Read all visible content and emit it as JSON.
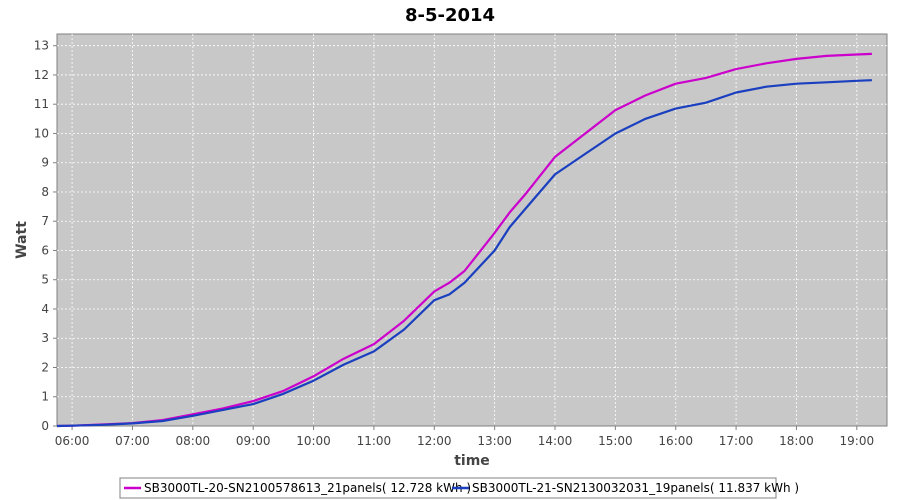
{
  "chart_data": {
    "type": "line",
    "title": "8-5-2014",
    "xlabel": "time",
    "ylabel": "Watt",
    "xlim": [
      "05:45",
      "19:30"
    ],
    "ylim": [
      0,
      13.4
    ],
    "x_ticks": [
      "06:00",
      "07:00",
      "08:00",
      "09:00",
      "10:00",
      "11:00",
      "12:00",
      "13:00",
      "14:00",
      "15:00",
      "16:00",
      "17:00",
      "18:00",
      "19:00"
    ],
    "y_ticks": [
      0,
      1,
      2,
      3,
      4,
      5,
      6,
      7,
      8,
      9,
      10,
      11,
      12,
      13
    ],
    "grid": true,
    "legend_position": "bottom",
    "series": [
      {
        "name": "SB3000TL-20-SN2100578613_21panels( 12.728 kWh )",
        "color": "#cc00cc",
        "x": [
          "05:45",
          "06:00",
          "06:30",
          "07:00",
          "07:30",
          "08:00",
          "08:30",
          "09:00",
          "09:30",
          "10:00",
          "10:30",
          "11:00",
          "11:30",
          "12:00",
          "12:15",
          "12:30",
          "13:00",
          "13:15",
          "13:30",
          "14:00",
          "14:30",
          "15:00",
          "15:30",
          "16:00",
          "16:30",
          "17:00",
          "17:30",
          "18:00",
          "18:30",
          "19:00",
          "19:15"
        ],
        "y": [
          0.0,
          0.01,
          0.05,
          0.1,
          0.2,
          0.4,
          0.6,
          0.85,
          1.2,
          1.7,
          2.3,
          2.8,
          3.6,
          4.6,
          4.9,
          5.3,
          6.6,
          7.3,
          7.9,
          9.2,
          10.0,
          10.8,
          11.3,
          11.7,
          11.9,
          12.2,
          12.4,
          12.55,
          12.65,
          12.7,
          12.72
        ]
      },
      {
        "name": "SB3000TL-21-SN2130032031_19panels( 11.837 kWh )",
        "color": "#1a3fbf",
        "x": [
          "05:45",
          "06:00",
          "06:30",
          "07:00",
          "07:30",
          "08:00",
          "08:30",
          "09:00",
          "09:30",
          "10:00",
          "10:30",
          "11:00",
          "11:30",
          "12:00",
          "12:15",
          "12:30",
          "13:00",
          "13:15",
          "13:30",
          "14:00",
          "14:30",
          "15:00",
          "15:30",
          "16:00",
          "16:30",
          "17:00",
          "17:30",
          "18:00",
          "18:30",
          "19:00",
          "19:15"
        ],
        "y": [
          0.0,
          0.01,
          0.04,
          0.09,
          0.17,
          0.35,
          0.55,
          0.75,
          1.1,
          1.55,
          2.1,
          2.55,
          3.3,
          4.3,
          4.5,
          4.9,
          6.0,
          6.8,
          7.4,
          8.6,
          9.3,
          10.0,
          10.5,
          10.85,
          11.05,
          11.4,
          11.6,
          11.7,
          11.75,
          11.8,
          11.82
        ]
      }
    ]
  }
}
